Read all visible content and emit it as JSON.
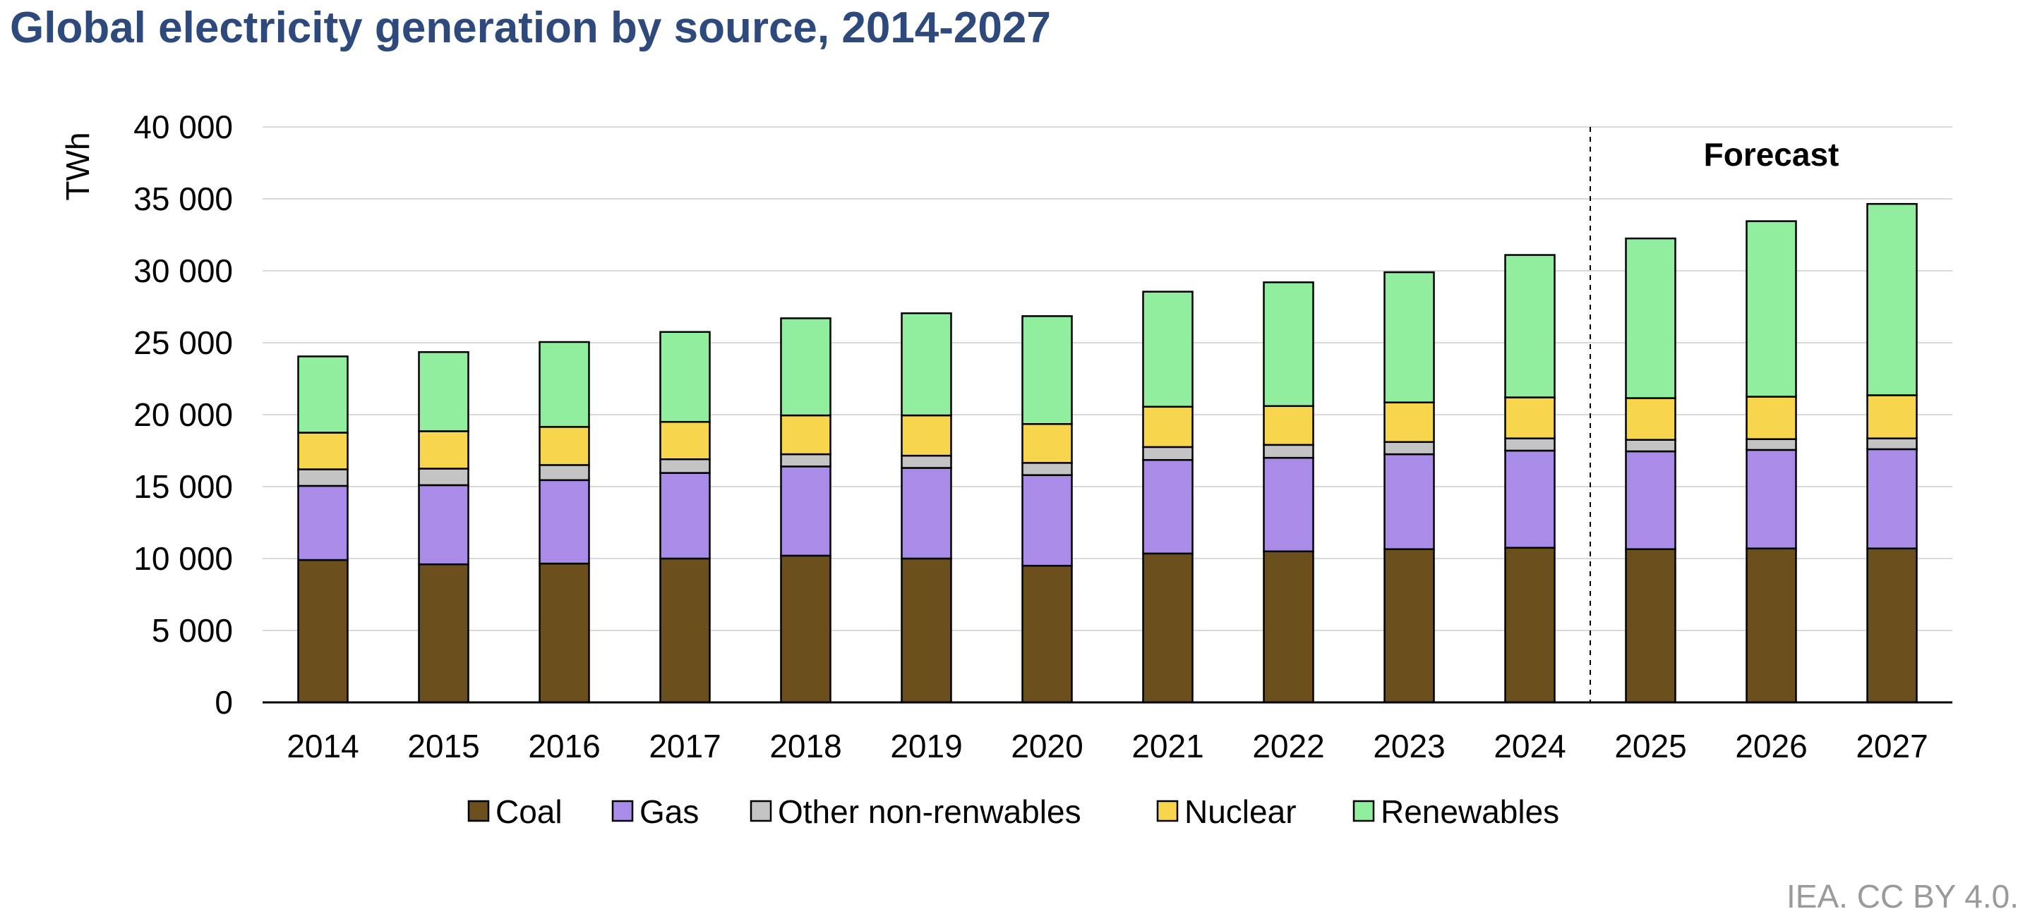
{
  "chart_data": {
    "type": "bar",
    "stacked": true,
    "title": "Global electricity generation by source, 2014-2027",
    "ylabel": "TWh",
    "xlabel": "",
    "ylim": [
      0,
      40000
    ],
    "yticks": [
      0,
      5000,
      10000,
      15000,
      20000,
      25000,
      30000,
      35000,
      40000
    ],
    "ytick_labels": [
      "0",
      "5 000",
      "10 000",
      "15 000",
      "20 000",
      "25 000",
      "30 000",
      "35 000",
      "40 000"
    ],
    "categories": [
      "2014",
      "2015",
      "2016",
      "2017",
      "2018",
      "2019",
      "2020",
      "2021",
      "2022",
      "2023",
      "2024",
      "2025",
      "2026",
      "2027"
    ],
    "series": [
      {
        "name": "Coal",
        "color": "#6b4f1c",
        "values": [
          9900,
          9600,
          9650,
          10000,
          10200,
          10000,
          9500,
          10350,
          10500,
          10650,
          10750,
          10650,
          10700,
          10700
        ]
      },
      {
        "name": "Gas",
        "color": "#a98be8",
        "values": [
          5150,
          5500,
          5800,
          5950,
          6200,
          6300,
          6300,
          6500,
          6500,
          6600,
          6750,
          6800,
          6850,
          6900
        ]
      },
      {
        "name": "Other non-renwables",
        "color": "#c4c4c4",
        "values": [
          1150,
          1150,
          1050,
          950,
          850,
          850,
          850,
          900,
          900,
          850,
          850,
          800,
          750,
          750
        ]
      },
      {
        "name": "Nuclear",
        "color": "#f7d64e",
        "values": [
          2550,
          2600,
          2650,
          2600,
          2700,
          2800,
          2700,
          2800,
          2700,
          2750,
          2850,
          2900,
          2950,
          3000
        ]
      },
      {
        "name": "Renewables",
        "color": "#90ee9e",
        "values": [
          5300,
          5500,
          5900,
          6250,
          6750,
          7100,
          7500,
          8000,
          8600,
          9050,
          9900,
          11100,
          12200,
          13300
        ]
      }
    ],
    "forecast_start_index": 11,
    "annotation": "Forecast",
    "grid": true,
    "legend_position": "bottom"
  },
  "source_note": "IEA. CC BY 4.0."
}
